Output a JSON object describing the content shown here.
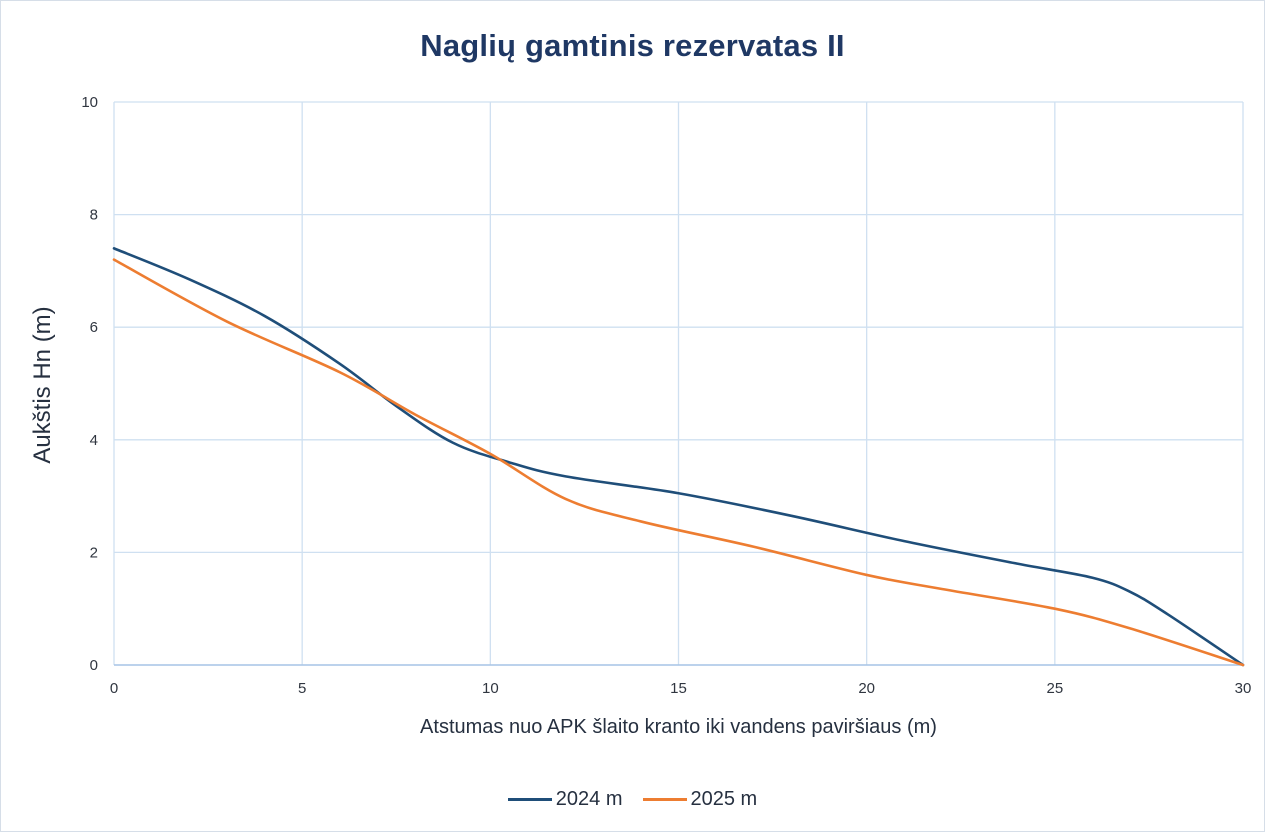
{
  "chart_data": {
    "type": "line",
    "title": "Naglių gamtinis rezervatas II",
    "xlabel": "Atstumas nuo APK šlaito kranto iki vandens paviršiaus (m)",
    "ylabel": "Aukštis Hn (m)",
    "xlim": [
      0,
      30
    ],
    "ylim": [
      0,
      10
    ],
    "x_ticks": [
      0,
      5,
      10,
      15,
      20,
      25,
      30
    ],
    "y_ticks": [
      0,
      2,
      4,
      6,
      8,
      10
    ],
    "grid": true,
    "legend_position": "bottom",
    "series": [
      {
        "name": "2024 m",
        "color": "#1f4e79",
        "x": [
          0,
          2,
          4,
          6,
          7.5,
          9,
          10.5,
          12,
          15,
          18,
          21,
          24,
          26,
          27,
          28,
          30
        ],
        "y": [
          7.4,
          6.85,
          6.2,
          5.35,
          4.6,
          3.95,
          3.6,
          3.35,
          3.05,
          2.65,
          2.2,
          1.8,
          1.55,
          1.3,
          0.9,
          0.0
        ]
      },
      {
        "name": "2025 m",
        "color": "#ed7d31",
        "x": [
          0,
          3,
          6,
          8,
          10,
          12,
          14,
          17,
          20,
          22,
          25,
          27,
          30
        ],
        "y": [
          7.2,
          6.1,
          5.2,
          4.45,
          3.75,
          2.95,
          2.55,
          2.1,
          1.6,
          1.35,
          1.0,
          0.65,
          0.0
        ]
      }
    ]
  }
}
